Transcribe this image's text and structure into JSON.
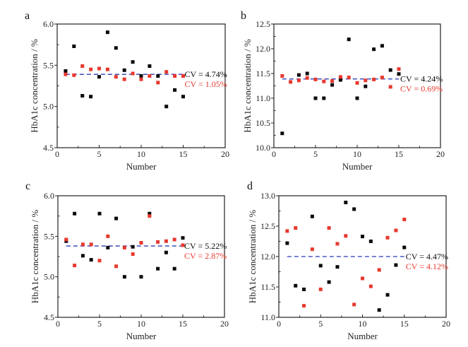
{
  "figure": {
    "colors": {
      "series_black": "#0a0a0a",
      "series_red": "#e8382e",
      "mean_line": "#4a5bc4",
      "axis": "#222222"
    }
  },
  "chart_data": [
    {
      "type": "scatter",
      "panel": "a",
      "xlabel": "Number",
      "ylabel": "HbA1c concentration / %",
      "xlim": [
        0,
        20
      ],
      "ylim": [
        4.5,
        6.0
      ],
      "xticks": [
        "0",
        "5",
        "10",
        "15",
        "20"
      ],
      "yticks": [
        "4.5",
        "5.0",
        "5.5",
        "6.0"
      ],
      "ytick_values": [
        4.5,
        5.0,
        5.5,
        6.0
      ],
      "grid": false,
      "mean_line": 5.39,
      "series": [
        {
          "name": "black",
          "color": "#0a0a0a",
          "cv_label": "CV = 4.74%",
          "x": [
            1,
            2,
            3,
            4,
            5,
            6,
            7,
            8,
            9,
            10,
            11,
            12,
            13,
            14,
            15
          ],
          "y": [
            5.43,
            5.73,
            5.13,
            5.12,
            5.36,
            5.9,
            5.71,
            5.44,
            5.54,
            5.37,
            5.49,
            5.37,
            5.0,
            5.2,
            5.12
          ]
        },
        {
          "name": "red",
          "color": "#e8382e",
          "cv_label": "CV = 1.05%",
          "x": [
            1,
            2,
            3,
            4,
            5,
            6,
            7,
            8,
            9,
            10,
            11,
            12,
            13,
            14,
            15
          ],
          "y": [
            5.39,
            5.38,
            5.49,
            5.45,
            5.46,
            5.45,
            5.36,
            5.33,
            5.4,
            5.33,
            5.37,
            5.29,
            5.42,
            5.37,
            5.37
          ]
        }
      ]
    },
    {
      "type": "scatter",
      "panel": "b",
      "xlabel": "Number",
      "ylabel": "HbA1c concentration / %",
      "xlim": [
        0,
        20
      ],
      "ylim": [
        10.0,
        12.5
      ],
      "xticks": [
        "0",
        "5",
        "10",
        "15",
        "20"
      ],
      "yticks": [
        "10.0",
        "10.5",
        "11.0",
        "11.5",
        "12.0",
        "12.5"
      ],
      "ytick_values": [
        10.0,
        10.5,
        11.0,
        11.5,
        12.0,
        12.5
      ],
      "grid": false,
      "mean_line": 11.39,
      "series": [
        {
          "name": "black",
          "color": "#0a0a0a",
          "cv_label": "CV = 4.24%",
          "x": [
            1,
            3,
            4,
            5,
            6,
            7,
            8,
            9,
            10,
            11,
            12,
            13,
            14,
            15
          ],
          "y": [
            10.29,
            11.47,
            11.5,
            11.0,
            11.0,
            11.27,
            11.37,
            12.19,
            11.0,
            11.24,
            11.99,
            12.06,
            11.57,
            11.49
          ]
        },
        {
          "name": "red",
          "color": "#e8382e",
          "cv_label": "CV = 0.69%",
          "x": [
            1,
            2,
            3,
            4,
            5,
            6,
            7,
            8,
            9,
            10,
            11,
            12,
            13,
            14,
            15
          ],
          "y": [
            11.45,
            11.33,
            11.36,
            11.41,
            11.38,
            11.34,
            11.35,
            11.43,
            11.42,
            11.31,
            11.36,
            11.38,
            11.42,
            11.23,
            11.59
          ]
        }
      ]
    },
    {
      "type": "scatter",
      "panel": "c",
      "xlabel": "Number",
      "ylabel": "HbA1c concentration / %",
      "xlim": [
        0,
        20
      ],
      "ylim": [
        4.5,
        6.0
      ],
      "xticks": [
        "0",
        "5",
        "10",
        "15",
        "20"
      ],
      "yticks": [
        "4.5",
        "5.0",
        "5.5",
        "6.0"
      ],
      "ytick_values": [
        4.5,
        5.0,
        5.5,
        6.0
      ],
      "grid": false,
      "mean_line": 5.38,
      "series": [
        {
          "name": "black",
          "color": "#0a0a0a",
          "cv_label": "CV = 5.22%",
          "x": [
            1,
            2,
            3,
            4,
            5,
            6,
            7,
            8,
            9,
            10,
            11,
            12,
            13,
            14,
            15
          ],
          "y": [
            5.44,
            5.78,
            5.26,
            5.21,
            5.78,
            5.36,
            5.72,
            5.0,
            5.37,
            5.0,
            5.78,
            5.1,
            5.3,
            5.1,
            5.48
          ]
        },
        {
          "name": "red",
          "color": "#e8382e",
          "cv_label": "CV = 2.87%",
          "x": [
            1,
            2,
            3,
            4,
            5,
            6,
            7,
            8,
            9,
            10,
            11,
            12,
            13,
            14,
            15
          ],
          "y": [
            5.46,
            5.14,
            5.4,
            5.4,
            5.2,
            5.5,
            5.13,
            5.36,
            5.28,
            5.42,
            5.75,
            5.43,
            5.44,
            5.46,
            5.39
          ]
        }
      ]
    },
    {
      "type": "scatter",
      "panel": "d",
      "xlabel": "Number",
      "ylabel": "HbA1c concentration / %",
      "xlim": [
        0,
        20
      ],
      "ylim": [
        11.0,
        13.0
      ],
      "xticks": [
        "0",
        "5",
        "10",
        "15",
        "20"
      ],
      "yticks": [
        "11.0",
        "11.5",
        "12.0",
        "12.5",
        "13.0"
      ],
      "ytick_values": [
        11.0,
        11.5,
        12.0,
        12.5,
        13.0
      ],
      "grid": false,
      "mean_line": 12.0,
      "series": [
        {
          "name": "black",
          "color": "#0a0a0a",
          "cv_label": "CV = 4.47%",
          "x": [
            1,
            2,
            3,
            4,
            5,
            6,
            7,
            8,
            9,
            10,
            11,
            12,
            13,
            14,
            15
          ],
          "y": [
            12.22,
            11.52,
            11.46,
            12.66,
            11.85,
            11.58,
            11.83,
            12.89,
            12.78,
            12.33,
            12.25,
            11.12,
            11.37,
            11.86,
            12.15
          ]
        },
        {
          "name": "red",
          "color": "#e8382e",
          "cv_label": "CV = 4.12%",
          "x": [
            1,
            2,
            3,
            4,
            5,
            6,
            7,
            8,
            9,
            10,
            11,
            12,
            13,
            14,
            15
          ],
          "y": [
            12.42,
            12.47,
            11.19,
            12.12,
            11.46,
            12.47,
            12.21,
            12.34,
            11.21,
            11.64,
            11.51,
            11.78,
            12.31,
            12.43,
            12.61
          ]
        }
      ]
    }
  ]
}
